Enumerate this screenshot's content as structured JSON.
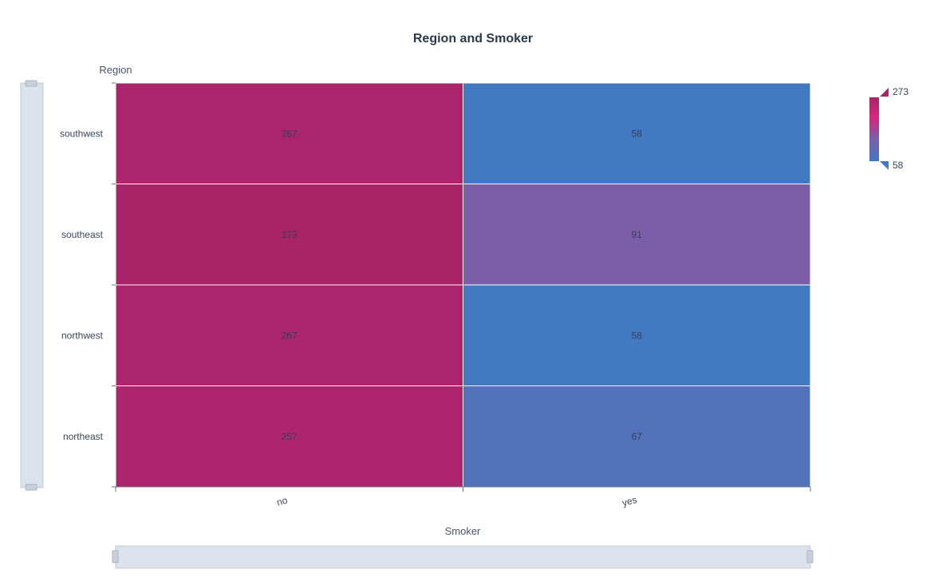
{
  "chart_data": {
    "type": "heatmap",
    "title": "Region and Smoker",
    "xlabel": "Smoker",
    "ylabel": "Region",
    "x_categories": [
      "no",
      "yes"
    ],
    "y_categories": [
      "southwest",
      "southeast",
      "northwest",
      "northeast"
    ],
    "values": [
      [
        267,
        58
      ],
      [
        273,
        91
      ],
      [
        267,
        58
      ],
      [
        257,
        67
      ]
    ],
    "visual_map": {
      "min": 58,
      "max": 273,
      "min_label": "58",
      "max_label": "273",
      "colors": [
        "#4279c0",
        "#7a5fa8",
        "#d4267e",
        "#a82468"
      ],
      "placement": "top-right"
    },
    "grid": false
  }
}
